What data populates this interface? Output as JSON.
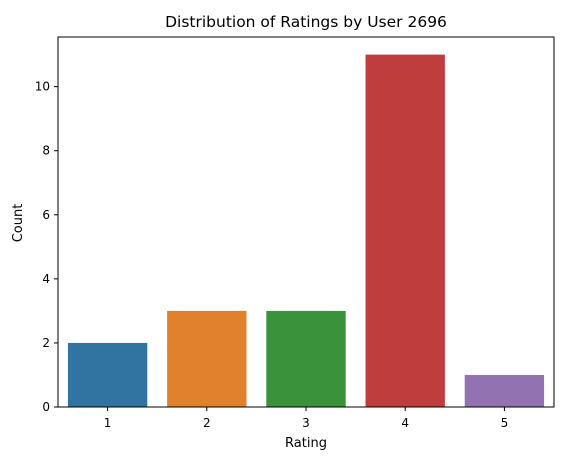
{
  "chart_data": {
    "type": "bar",
    "title": "Distribution of Ratings by User 2696",
    "xlabel": "Rating",
    "ylabel": "Count",
    "categories": [
      "1",
      "2",
      "3",
      "4",
      "5"
    ],
    "values": [
      2,
      3,
      3,
      11,
      1
    ],
    "ylim": [
      0,
      11.55
    ],
    "yticks": [
      0,
      2,
      4,
      6,
      8,
      10
    ],
    "colors": [
      "#3274a1",
      "#e1812c",
      "#3a923a",
      "#c03d3e",
      "#9372b2"
    ],
    "grid": false
  }
}
